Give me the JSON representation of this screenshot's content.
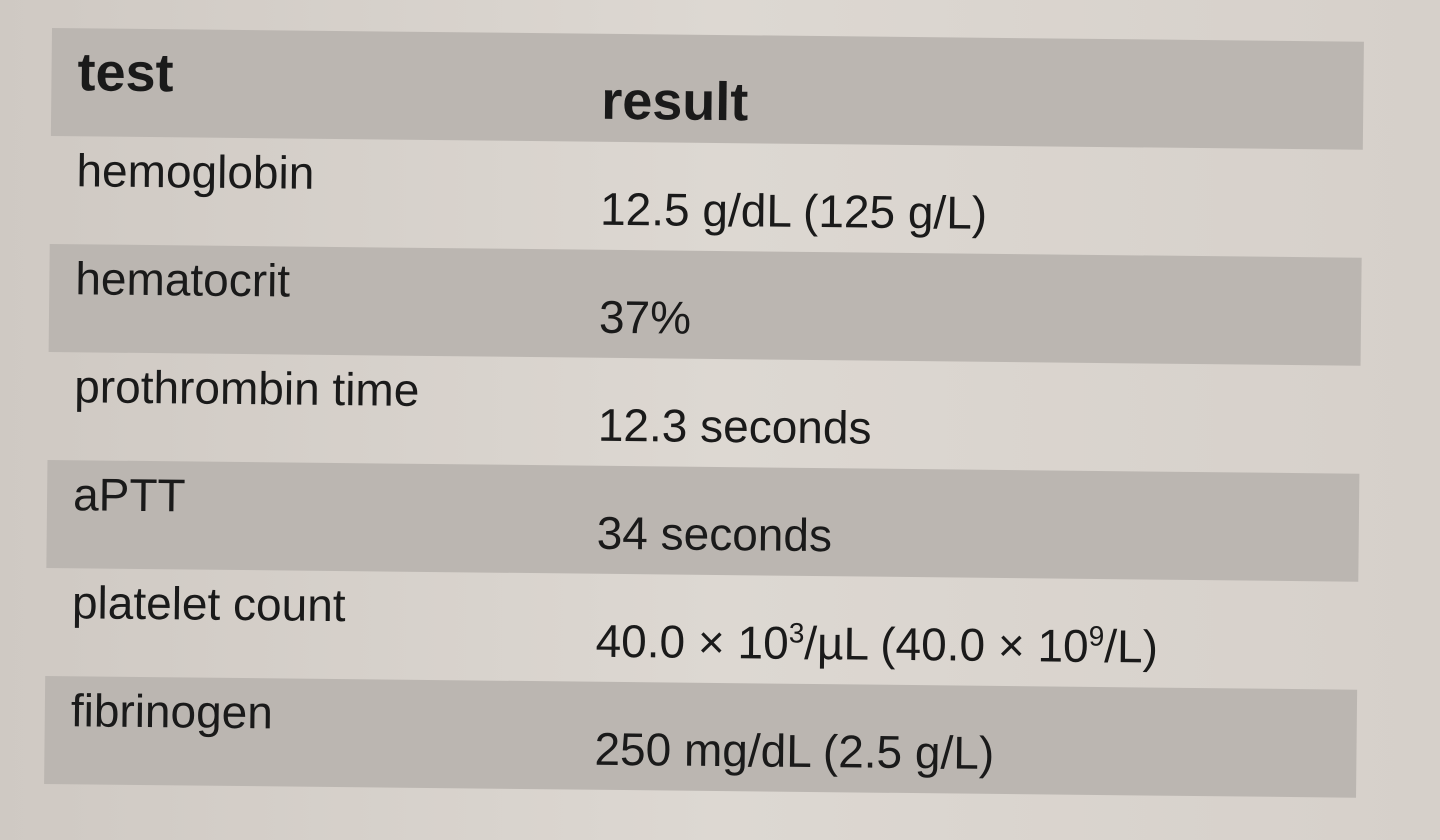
{
  "table": {
    "headers": [
      "test",
      "result"
    ],
    "rows": [
      {
        "test": "hemoglobin",
        "result": "12.5 g/dL (125 g/L)"
      },
      {
        "test": "hematocrit",
        "result": "37%"
      },
      {
        "test": "prothrombin time",
        "result": "12.3 seconds"
      },
      {
        "test": "aPTT",
        "result": "34 seconds"
      },
      {
        "test": "platelet count",
        "result_parts": [
          "40.0 × 10",
          "3",
          "/µL (40.0 × 10",
          "9",
          "/L)"
        ]
      },
      {
        "test": "fibrinogen",
        "result": "250 mg/dL (2.5 g/L)"
      }
    ]
  }
}
